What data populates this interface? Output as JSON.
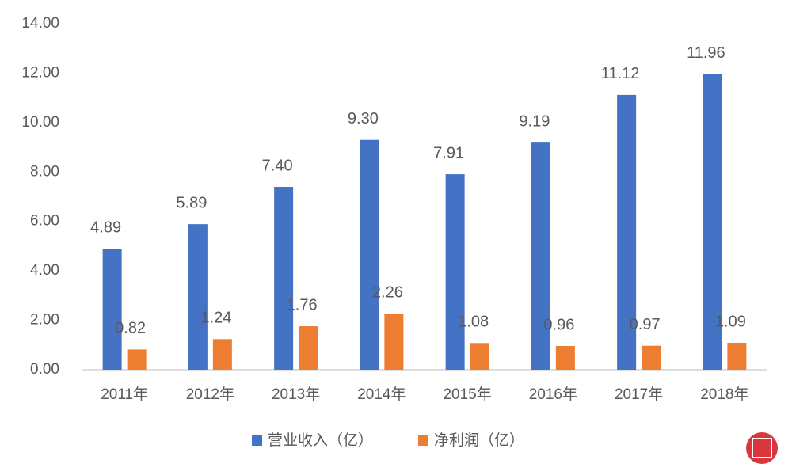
{
  "chart_data": {
    "type": "bar",
    "categories": [
      "2011年",
      "2012年",
      "2013年",
      "2014年",
      "2015年",
      "2016年",
      "2017年",
      "2018年"
    ],
    "series": [
      {
        "name": "营业收入（亿）",
        "color": "#4472c4",
        "values": [
          4.89,
          5.89,
          7.4,
          9.3,
          7.91,
          9.19,
          11.12,
          11.96
        ],
        "value_labels": [
          "4.89",
          "5.89",
          "7.40",
          "9.30",
          "7.91",
          "9.19",
          "11.12",
          "11.96"
        ]
      },
      {
        "name": "净利润（亿）",
        "color": "#ed7d31",
        "values": [
          0.82,
          1.24,
          1.76,
          2.26,
          1.08,
          0.96,
          0.97,
          1.09
        ]
      }
    ],
    "ylim": [
      0,
      14
    ],
    "yticks": [
      {
        "value": 0,
        "label": "0.00"
      },
      {
        "value": 2,
        "label": "2.00"
      },
      {
        "value": 4,
        "label": "4.00"
      },
      {
        "value": 6,
        "label": "6.00"
      },
      {
        "value": 8,
        "label": "8.00"
      },
      {
        "value": 10,
        "label": "10.00"
      },
      {
        "value": 12,
        "label": "12.00"
      },
      {
        "value": 14,
        "label": "14.00"
      }
    ],
    "grid": false,
    "legend": "bottom"
  }
}
